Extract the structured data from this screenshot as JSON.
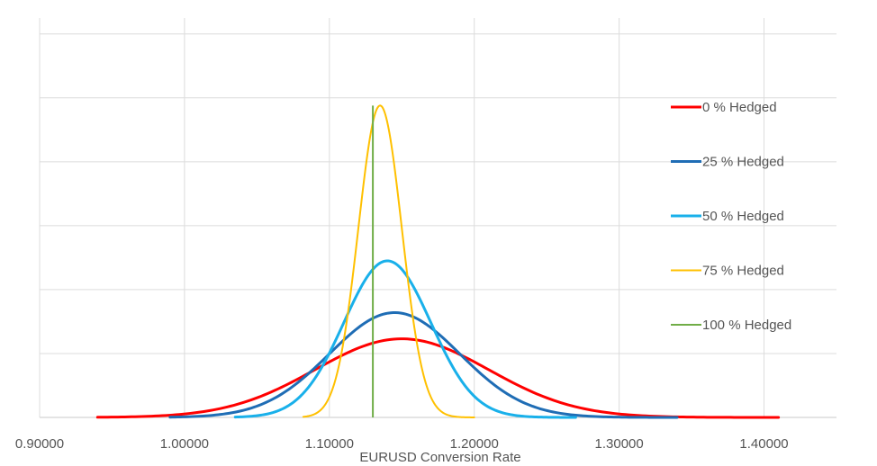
{
  "chart_data": {
    "type": "line",
    "title": "",
    "xlabel": "EURUSD Conversion Rate",
    "ylabel": "",
    "xlim": [
      0.9,
      1.45
    ],
    "x_ticks": [
      "0.90000",
      "1.00000",
      "1.10000",
      "1.20000",
      "1.30000",
      "1.40000"
    ],
    "x_tick_values": [
      0.9,
      1.0,
      1.1,
      1.2,
      1.3,
      1.4
    ],
    "ylim": [
      0,
      6.25
    ],
    "y_gridlines": [
      0,
      1,
      2,
      3,
      4,
      5,
      6
    ],
    "grid": true,
    "legend_position": "right",
    "series": [
      {
        "name": "0 % Hedged",
        "color": "#ff0000",
        "kind": "normal",
        "mean": 1.15,
        "sd": 0.06,
        "x_range": [
          0.94,
          1.41
        ],
        "peak": 1.23
      },
      {
        "name": "25 % Hedged",
        "color": "#1f6db5",
        "kind": "normal",
        "mean": 1.145,
        "sd": 0.045,
        "x_range": [
          0.99,
          1.34
        ],
        "peak": 1.64
      },
      {
        "name": "50 % Hedged",
        "color": "#19b0ea",
        "kind": "normal",
        "mean": 1.14,
        "sd": 0.03,
        "x_range": [
          1.035,
          1.27
        ],
        "peak": 2.45
      },
      {
        "name": "75 % Hedged",
        "color": "#ffc000",
        "kind": "normal",
        "mean": 1.135,
        "sd": 0.015,
        "x_range": [
          1.082,
          1.2
        ],
        "peak": 4.88
      },
      {
        "name": "100 % Hedged",
        "color": "#70ad47",
        "kind": "vertical",
        "x": 1.13,
        "peak": 4.88
      }
    ]
  }
}
